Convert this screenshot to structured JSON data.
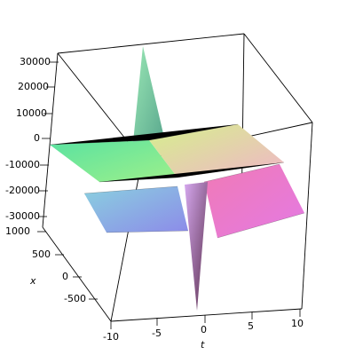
{
  "chart_data": {
    "type": "surface3d",
    "title": "",
    "xlabel": "t",
    "ylabel": "x",
    "zlabel": "",
    "t_range": [
      -10,
      10
    ],
    "x_range": [
      -1000,
      1000
    ],
    "z_range": [
      -30000,
      30000
    ],
    "t_ticks": [
      "-10",
      "-5",
      "0",
      "5",
      "10"
    ],
    "x_ticks": [
      "1000",
      "500",
      "0",
      "-500"
    ],
    "z_ticks": [
      "30000",
      "20000",
      "10000",
      "0",
      "-10000",
      "-20000",
      "-30000"
    ],
    "axis_ticks": {
      "t": [
        -10,
        -5,
        0,
        5,
        10
      ],
      "x": [
        1000,
        500,
        0,
        -500
      ],
      "z": [
        30000,
        20000,
        10000,
        0,
        -10000,
        -20000,
        -30000
      ]
    },
    "surface": {
      "description_of_shape": "singular surface: near z=0 plateaus with a sharp spike along t≈0 line",
      "grid_t": [
        -10,
        -7.5,
        -5,
        -2.5,
        0,
        2.5,
        5,
        7.5,
        10
      ],
      "grid_x": [
        -1000,
        -750,
        -500,
        -250,
        0,
        250,
        500,
        750,
        1000
      ]
    },
    "colors": {
      "green": "#7fe08f",
      "yellow": "#d6ef8a",
      "pink": "#ec7bd6",
      "purple": "#a37be8",
      "blue": "#7d8de8"
    },
    "grid": true,
    "legend": "none"
  }
}
